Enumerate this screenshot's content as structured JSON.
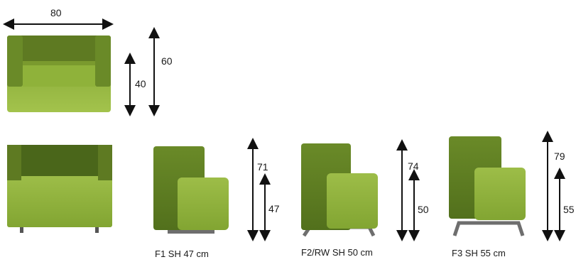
{
  "dimensions": {
    "top_width": "80",
    "top_inner_depth": "40",
    "top_depth": "60",
    "f1_height": "71",
    "f1_seat": "47",
    "f2_height": "74",
    "f2_seat": "50",
    "f3_height": "79",
    "f3_seat": "55"
  },
  "captions": {
    "f1": "F1  SH 47 cm",
    "f2": "F2/RW  SH 50 cm",
    "f3": "F3  SH 55 cm"
  },
  "colors": {
    "fabric_light": "#8fb23a",
    "fabric_dark": "#5e7a22",
    "frame": "#6e6e6e"
  }
}
